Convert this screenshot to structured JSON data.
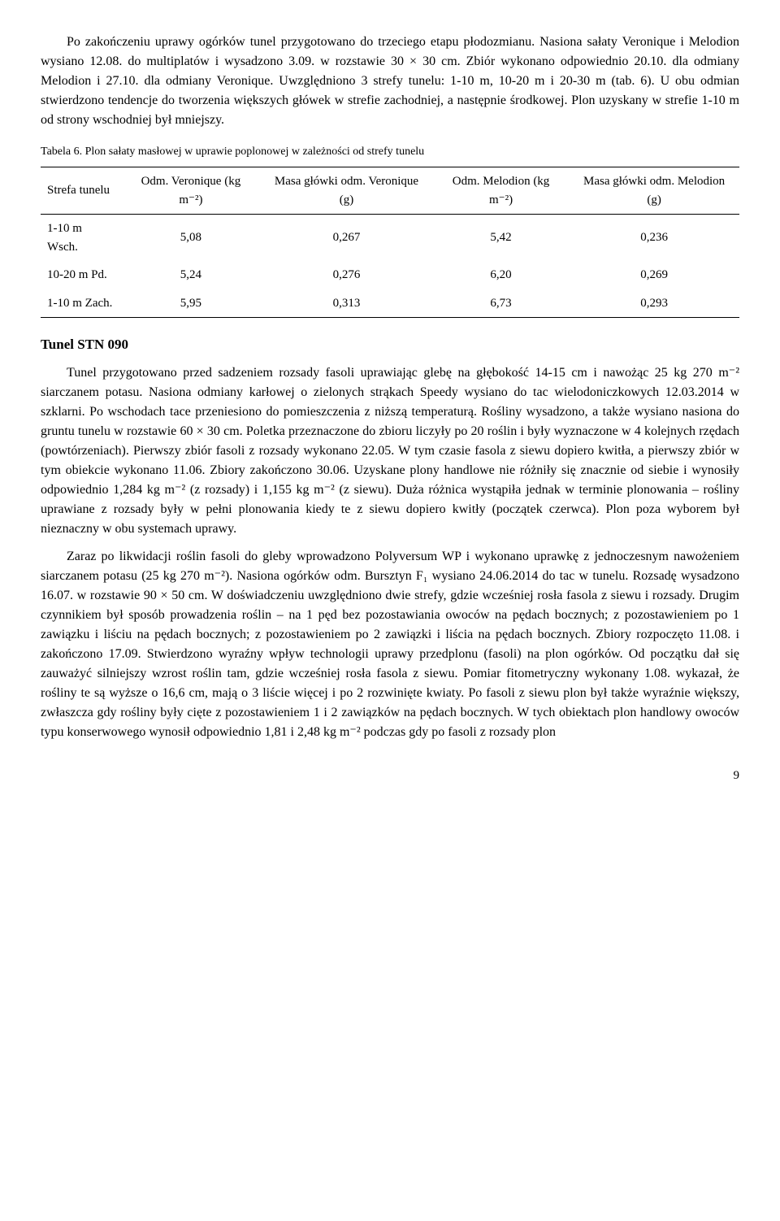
{
  "para1": "Po zakończeniu uprawy ogórków tunel przygotowano do trzeciego etapu płodozmianu. Nasiona sałaty Veronique i Melodion wysiano 12.08. do multiplatów i wysadzono 3.09. w rozstawie 30 × 30 cm. Zbiór wykonano odpowiednio 20.10. dla odmiany Melodion i 27.10. dla odmiany Veronique. Uwzględniono 3 strefy tunelu: 1-10 m, 10-20 m i 20-30 m (tab. 6). U obu odmian stwierdzono tendencje do tworzenia większych główek w strefie zachodniej, a następnie środkowej. Plon uzyskany w strefie 1-10 m od strony wschodniej był mniejszy.",
  "table_caption": "Tabela 6. Plon sałaty masłowej w uprawie poplonowej w zależności od strefy tunelu",
  "table": {
    "columns": [
      "Strefa tunelu",
      "Odm. Veronique (kg m⁻²)",
      "Masa główki odm. Veronique (g)",
      "Odm. Melodion (kg m⁻²)",
      "Masa główki odm. Melodion (g)"
    ],
    "rows": [
      [
        "1-10 m Wsch.",
        "5,08",
        "0,267",
        "5,42",
        "0,236"
      ],
      [
        "10-20 m Pd.",
        "5,24",
        "0,276",
        "6,20",
        "0,269"
      ],
      [
        "1-10 m Zach.",
        "5,95",
        "0,313",
        "6,73",
        "0,293"
      ]
    ]
  },
  "heading": "Tunel  STN 090",
  "para2": "Tunel przygotowano przed sadzeniem rozsady fasoli uprawiając glebę na głębokość 14-15 cm i nawożąc 25 kg 270 m⁻² siarczanem potasu. Nasiona odmiany karłowej o zielonych strąkach Speedy wysiano do tac wielodoniczkowych 12.03.2014 w szklarni. Po wschodach tace przeniesiono do pomieszczenia z niższą temperaturą. Rośliny wysadzono, a także wysiano nasiona do gruntu tunelu w rozstawie 60 × 30 cm. Poletka przeznaczone do zbioru liczyły po 20 roślin i były wyznaczone w 4 kolejnych rzędach (powtórzeniach). Pierwszy zbiór fasoli z rozsady wykonano 22.05. W tym czasie fasola z siewu dopiero kwitła, a pierwszy zbiór w tym obiekcie wykonano 11.06. Zbiory zakończono 30.06. Uzyskane plony handlowe nie różniły się znacznie od siebie i wynosiły odpowiednio 1,284 kg m⁻² (z rozsady) i 1,155 kg m⁻² (z siewu). Duża różnica wystąpiła jednak w terminie plonowania – rośliny uprawiane z rozsady były w pełni plonowania kiedy te z siewu dopiero kwitły (początek czerwca). Plon poza wyborem był nieznaczny w obu systemach uprawy.",
  "para3": "Zaraz po likwidacji roślin fasoli do gleby wprowadzono Polyversum WP i wykonano uprawkę z jednoczesnym nawożeniem siarczanem potasu (25 kg 270 m⁻²). Nasiona ogórków odm. Bursztyn F₁ wysiano 24.06.2014 do tac w tunelu. Rozsadę wysadzono 16.07. w rozstawie 90 × 50 cm. W doświadczeniu uwzględniono dwie strefy, gdzie wcześniej rosła fasola z siewu i rozsady. Drugim czynnikiem był sposób prowadzenia roślin – na 1 pęd bez pozostawiania owoców na pędach bocznych; z pozostawieniem po 1 zawiązku i liściu na pędach bocznych; z pozostawieniem po 2 zawiązki i liścia na pędach bocznych. Zbiory rozpoczęto 11.08. i zakończono 17.09. Stwierdzono wyraźny wpływ technologii uprawy przedplonu (fasoli) na plon ogórków. Od początku dał się zauważyć silniejszy wzrost roślin tam, gdzie wcześniej rosła fasola z siewu. Pomiar fitometryczny wykonany 1.08. wykazał, że rośliny te są wyższe o 16,6 cm, mają o 3 liście więcej i po 2 rozwinięte kwiaty. Po fasoli z siewu plon był także wyraźnie większy, zwłaszcza gdy rośliny były cięte z pozostawieniem 1 i 2 zawiązków na pędach bocznych. W tych obiektach plon handlowy owoców typu konserwowego wynosił odpowiednio 1,81 i 2,48 kg m⁻² podczas gdy po fasoli z rozsady plon",
  "page_number": "9"
}
